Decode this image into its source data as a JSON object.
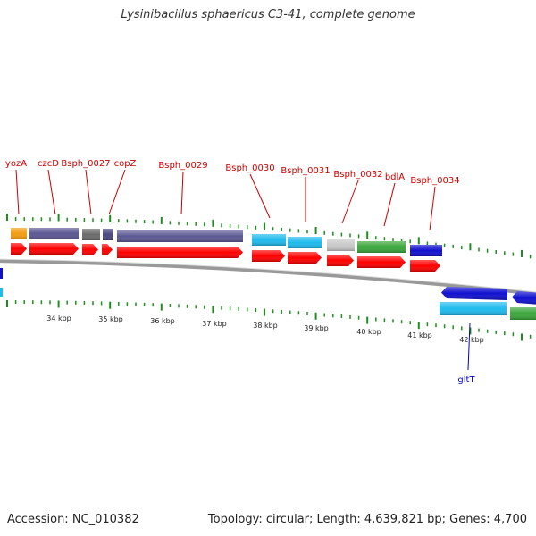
{
  "title": "Lysinibacillus sphaericus C3-41, complete genome",
  "accession": "Accession: NC_010382",
  "summary": "Topology: circular; Length: 4,639,821 bp; Genes: 4,700",
  "colors": {
    "label_top": "#cc0000",
    "label_bottom": "#0000cc",
    "cds": "#ff0000",
    "tick": "#1b8f1b",
    "backbone": "#999999"
  },
  "top_genes": [
    {
      "label": "yozA",
      "color": "#f39c12"
    },
    {
      "label": "czcD",
      "color": "#5b5793"
    },
    {
      "label": "Bsph_0027",
      "color": "#6b6b6b"
    },
    {
      "label": "copZ",
      "color": "#4a4680"
    },
    {
      "label": "Bsph_0029",
      "color": "#5b5793"
    },
    {
      "label": "Bsph_0030",
      "color": "#1ebbee"
    },
    {
      "label": "Bsph_0031",
      "color": "#1ebbee"
    },
    {
      "label": "Bsph_0032",
      "color": "#c8c8c8"
    },
    {
      "label": "bdlA",
      "color": "#3aa63a"
    },
    {
      "label": "Bsph_0034",
      "color": "#1010d0"
    }
  ],
  "bottom_genes": [
    {
      "label": "gltT",
      "color": "#1010d0"
    }
  ],
  "kbp_labels": [
    "34 kbp",
    "35 kbp",
    "36 kbp",
    "37 kbp",
    "38 kbp",
    "39 kbp",
    "40 kbp",
    "41 kbp",
    "42 kbp"
  ]
}
